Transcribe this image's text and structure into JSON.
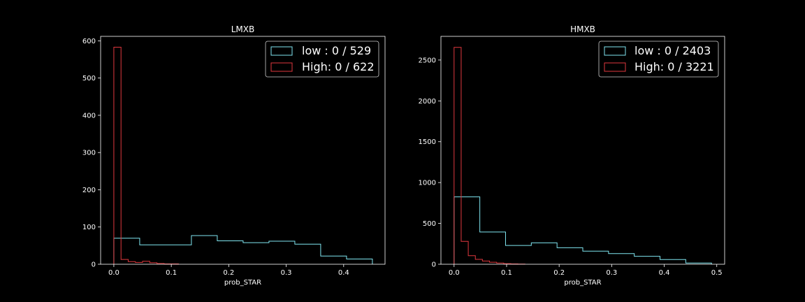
{
  "chart_data": [
    {
      "type": "step-histogram",
      "title": "LMXB",
      "xlabel": "prob_STAR",
      "ylabel": "",
      "xlim": [
        -0.023,
        0.472
      ],
      "ylim": [
        0,
        612
      ],
      "xticks": [
        0.0,
        0.1,
        0.2,
        0.3,
        0.4
      ],
      "xtick_labels": [
        "0.0",
        "0.1",
        "0.2",
        "0.3",
        "0.4"
      ],
      "yticks": [
        0,
        100,
        200,
        300,
        400,
        500,
        600
      ],
      "ytick_labels": [
        "0",
        "100",
        "200",
        "300",
        "400",
        "500",
        "600"
      ],
      "legend_position": "top-right",
      "series": [
        {
          "name": "low : 0 / 529",
          "color": "#7fe5f0",
          "edges": [
            0.0,
            0.045,
            0.09,
            0.135,
            0.18,
            0.225,
            0.27,
            0.315,
            0.36,
            0.405,
            0.45
          ],
          "values": [
            70,
            52,
            52,
            77,
            63,
            58,
            62,
            54,
            22,
            14
          ]
        },
        {
          "name": "High: 0 / 622",
          "color": "#e0383e",
          "edges": [
            0.0,
            0.0125,
            0.025,
            0.0375,
            0.05,
            0.0625,
            0.075,
            0.0875,
            0.1,
            0.1125
          ],
          "values": [
            583,
            13,
            7,
            5,
            8,
            4,
            2,
            1,
            1
          ]
        }
      ]
    },
    {
      "type": "step-histogram",
      "title": "HMXB",
      "xlabel": "prob_STAR",
      "ylabel": "",
      "xlim": [
        -0.025,
        0.515
      ],
      "ylim": [
        0,
        2790
      ],
      "xticks": [
        0.0,
        0.1,
        0.2,
        0.3,
        0.4,
        0.5
      ],
      "xtick_labels": [
        "0.0",
        "0.1",
        "0.2",
        "0.3",
        "0.4",
        "0.5"
      ],
      "yticks": [
        0,
        500,
        1000,
        1500,
        2000,
        2500
      ],
      "ytick_labels": [
        "0",
        "500",
        "1000",
        "1500",
        "2000",
        "2500"
      ],
      "legend_position": "top-right",
      "series": [
        {
          "name": "low : 0 / 2403",
          "color": "#7fe5f0",
          "edges": [
            0.0,
            0.049,
            0.098,
            0.147,
            0.196,
            0.245,
            0.294,
            0.343,
            0.392,
            0.441,
            0.49
          ],
          "values": [
            825,
            395,
            230,
            262,
            202,
            160,
            130,
            97,
            58,
            15
          ]
        },
        {
          "name": "High: 0 / 3221",
          "color": "#e0383e",
          "edges": [
            0.0,
            0.0135,
            0.027,
            0.0405,
            0.054,
            0.0675,
            0.081,
            0.0945,
            0.108,
            0.1215,
            0.135
          ],
          "values": [
            2655,
            280,
            105,
            60,
            40,
            25,
            15,
            8,
            4,
            2
          ]
        }
      ]
    }
  ]
}
